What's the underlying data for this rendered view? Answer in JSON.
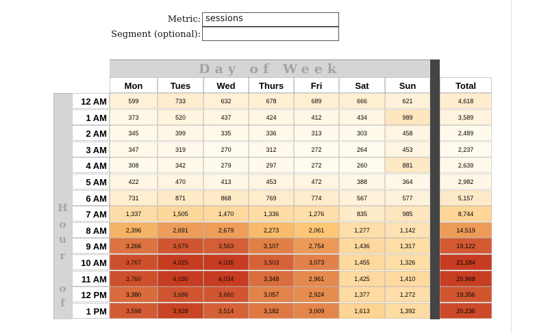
{
  "form": {
    "metric_label": "Metric:",
    "metric_value": "sessions",
    "segment_label": "Segment (optional):",
    "segment_value": ""
  },
  "heatmap": {
    "title": "Day of Week",
    "side_title": "Hour of",
    "columns": [
      "Mon",
      "Tues",
      "Wed",
      "Thurs",
      "Fri",
      "Sat",
      "Sun"
    ],
    "total_label": "Total",
    "rows": [
      {
        "hour": "12 AM",
        "values": [
          "599",
          "733",
          "632",
          "678",
          "689",
          "666",
          "621"
        ],
        "total": "4,618"
      },
      {
        "hour": "1 AM",
        "values": [
          "373",
          "520",
          "437",
          "424",
          "412",
          "434",
          "989"
        ],
        "total": "3,589"
      },
      {
        "hour": "2 AM",
        "values": [
          "345",
          "399",
          "335",
          "336",
          "313",
          "303",
          "458"
        ],
        "total": "2,489"
      },
      {
        "hour": "3 AM",
        "values": [
          "347",
          "319",
          "270",
          "312",
          "272",
          "264",
          "453"
        ],
        "total": "2,237"
      },
      {
        "hour": "4 AM",
        "values": [
          "308",
          "342",
          "279",
          "297",
          "272",
          "260",
          "881"
        ],
        "total": "2,639"
      },
      {
        "hour": "5 AM",
        "values": [
          "422",
          "470",
          "413",
          "453",
          "472",
          "388",
          "364"
        ],
        "total": "2,982"
      },
      {
        "hour": "6 AM",
        "values": [
          "731",
          "871",
          "868",
          "769",
          "774",
          "567",
          "577"
        ],
        "total": "5,157"
      },
      {
        "hour": "7 AM",
        "values": [
          "1,337",
          "1,505",
          "1,470",
          "1,336",
          "1,276",
          "835",
          "985"
        ],
        "total": "8,744"
      },
      {
        "hour": "8 AM",
        "values": [
          "2,396",
          "2,691",
          "2,679",
          "2,273",
          "2,061",
          "1,277",
          "1,142"
        ],
        "total": "14,519"
      },
      {
        "hour": "9 AM",
        "values": [
          "3,266",
          "3,679",
          "3,563",
          "3,107",
          "2,754",
          "1,436",
          "1,317"
        ],
        "total": "19,122"
      },
      {
        "hour": "10 AM",
        "values": [
          "3,767",
          "4,025",
          "4,035",
          "3,503",
          "3,073",
          "1,455",
          "1,326"
        ],
        "total": "21,184"
      },
      {
        "hour": "11 AM",
        "values": [
          "3,760",
          "4,030",
          "4,034",
          "3,348",
          "2,961",
          "1,425",
          "1,410"
        ],
        "total": "20,968"
      },
      {
        "hour": "12 PM",
        "values": [
          "3,380",
          "3,686",
          "3,660",
          "3,057",
          "2,924",
          "1,377",
          "1,272"
        ],
        "total": "19,356"
      },
      {
        "hour": "1 PM",
        "values": [
          "3,598",
          "3,928",
          "3,514",
          "3,182",
          "3,009",
          "1,613",
          "1,392"
        ],
        "total": "20,236"
      }
    ]
  },
  "colors": {
    "header_band": "#d5d5d5",
    "header_text": "#a4a4a4",
    "divider": "#444444",
    "scale_low": "#fffbef",
    "scale_mid": "#fdc56f",
    "scale_high": "#c63b21"
  }
}
